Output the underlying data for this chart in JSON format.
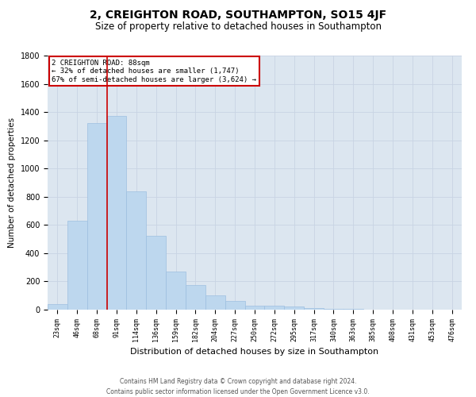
{
  "title": "2, CREIGHTON ROAD, SOUTHAMPTON, SO15 4JF",
  "subtitle": "Size of property relative to detached houses in Southampton",
  "xlabel": "Distribution of detached houses by size in Southampton",
  "ylabel": "Number of detached properties",
  "categories": [
    "23sqm",
    "46sqm",
    "68sqm",
    "91sqm",
    "114sqm",
    "136sqm",
    "159sqm",
    "182sqm",
    "204sqm",
    "227sqm",
    "250sqm",
    "272sqm",
    "295sqm",
    "317sqm",
    "340sqm",
    "363sqm",
    "385sqm",
    "408sqm",
    "431sqm",
    "453sqm",
    "476sqm"
  ],
  "values": [
    40,
    630,
    1320,
    1370,
    840,
    525,
    270,
    175,
    100,
    62,
    30,
    27,
    20,
    13,
    5,
    3,
    2,
    1,
    1,
    0,
    0
  ],
  "bar_color": "#bdd7ee",
  "bar_edge_color": "#9dbfe0",
  "vline_x_index": 2.52,
  "vline_color": "#cc0000",
  "annotation_text": "2 CREIGHTON ROAD: 88sqm\n← 32% of detached houses are smaller (1,747)\n67% of semi-detached houses are larger (3,624) →",
  "annotation_box_color": "#ffffff",
  "annotation_box_edge": "#cc0000",
  "ylim": [
    0,
    1800
  ],
  "yticks": [
    0,
    200,
    400,
    600,
    800,
    1000,
    1200,
    1400,
    1600,
    1800
  ],
  "title_fontsize": 10,
  "subtitle_fontsize": 8.5,
  "xlabel_fontsize": 8,
  "ylabel_fontsize": 7.5,
  "tick_fontsize": 7,
  "xtick_fontsize": 6,
  "footer_line1": "Contains HM Land Registry data © Crown copyright and database right 2024.",
  "footer_line2": "Contains public sector information licensed under the Open Government Licence v3.0.",
  "grid_color": "#c8d4e3",
  "background_color": "#dce6f0"
}
